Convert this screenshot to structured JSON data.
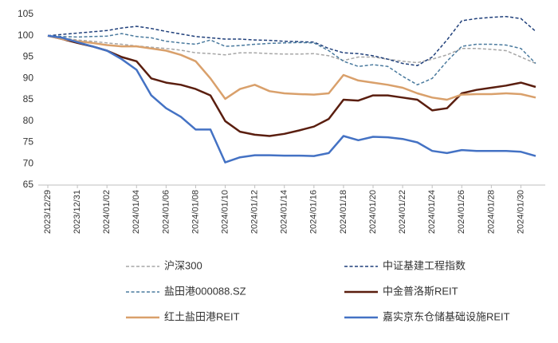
{
  "chart_data": {
    "type": "line",
    "categories": [
      "2023/12/29",
      null,
      "2023/12/31",
      null,
      "2024/01/02",
      null,
      "2024/01/04",
      null,
      "2024/01/06",
      null,
      "2024/01/08",
      null,
      "2024/01/10",
      null,
      "2024/01/12",
      null,
      "2024/01/14",
      null,
      "2024/01/16",
      null,
      "2024/01/18",
      null,
      "2024/01/20",
      null,
      "2024/01/22",
      null,
      "2024/01/24",
      null,
      "2024/01/26",
      null,
      "2024/01/28",
      null,
      "2024/01/30",
      null
    ],
    "ylim": [
      65,
      105
    ],
    "yticks": [
      65,
      70,
      75,
      80,
      85,
      90,
      95,
      100,
      105
    ],
    "grid": false,
    "legend": "bottom",
    "series": [
      {
        "name": "沪深300",
        "color": "#a6a6a6",
        "line_style": "dashed",
        "values": [
          100,
          99.5,
          99,
          98.7,
          98.3,
          98,
          97.6,
          97.3,
          97,
          96.6,
          96,
          95.8,
          95.5,
          96,
          96,
          95.8,
          95.7,
          95.7,
          95.8,
          95.3,
          94.2,
          95,
          95,
          94.5,
          94,
          93.7,
          94.5,
          95.5,
          97,
          97,
          96.8,
          96.5,
          95,
          93.5
        ]
      },
      {
        "name": "中证基建工程指数",
        "color": "#1f3f7a",
        "line_style": "dashed",
        "values": [
          100,
          100.3,
          100.6,
          100.9,
          101.2,
          101.8,
          102.2,
          101.7,
          101,
          100.4,
          99.8,
          99.5,
          99.2,
          99.2,
          99,
          98.9,
          98.7,
          98.6,
          98.5,
          97,
          96,
          95.8,
          95.3,
          94.5,
          93.5,
          93,
          95,
          99,
          103.5,
          104,
          104.3,
          104.5,
          104,
          101
        ]
      },
      {
        "name": "盐田港000088.SZ",
        "color": "#4a7a9e",
        "line_style": "dashed",
        "values": [
          100,
          99.8,
          99.7,
          99.8,
          99.9,
          100.5,
          99.8,
          99.5,
          98.7,
          98.3,
          98,
          99,
          97.5,
          97.7,
          98,
          98.2,
          98.3,
          98.4,
          98.3,
          96.5,
          94,
          92.8,
          93.2,
          92.8,
          90.5,
          88.5,
          90,
          94,
          97.5,
          98,
          98,
          97.8,
          97,
          93.5
        ]
      },
      {
        "name": "中金普洛斯REIT",
        "color": "#5a1e0f",
        "line_style": "solid",
        "values": [
          100,
          99.2,
          98.3,
          97.5,
          96.5,
          95,
          94,
          90,
          89,
          88.5,
          87.5,
          86,
          80,
          77.5,
          76.8,
          76.5,
          77,
          77.8,
          78.7,
          80.5,
          85,
          84.8,
          86,
          86,
          85.5,
          85,
          82.5,
          83,
          86.5,
          87.3,
          87.8,
          88.3,
          89,
          88
        ]
      },
      {
        "name": "红土盐田港REIT",
        "color": "#d9a06b",
        "line_style": "solid",
        "values": [
          100,
          99.2,
          98.7,
          98.3,
          97.8,
          97.5,
          97.5,
          97,
          96.5,
          95.5,
          94,
          90,
          85.2,
          87.5,
          88.5,
          87,
          86.5,
          86.3,
          86.2,
          86.5,
          90.8,
          89.5,
          89,
          88.5,
          87.8,
          86.5,
          85.5,
          85,
          86.2,
          86.3,
          86.3,
          86.5,
          86.3,
          85.5
        ]
      },
      {
        "name": "嘉实京东仓储基础设施REIT",
        "color": "#4472c4",
        "line_style": "solid",
        "values": [
          100,
          99.5,
          98.5,
          97.5,
          96.5,
          94.5,
          92,
          86,
          83,
          81,
          78,
          78,
          70.3,
          71.5,
          72,
          72,
          71.9,
          71.9,
          71.8,
          72.5,
          76.5,
          75.5,
          76.3,
          76.2,
          75.8,
          75,
          73,
          72.5,
          73.2,
          73,
          73,
          73,
          72.8,
          71.8
        ]
      }
    ]
  }
}
